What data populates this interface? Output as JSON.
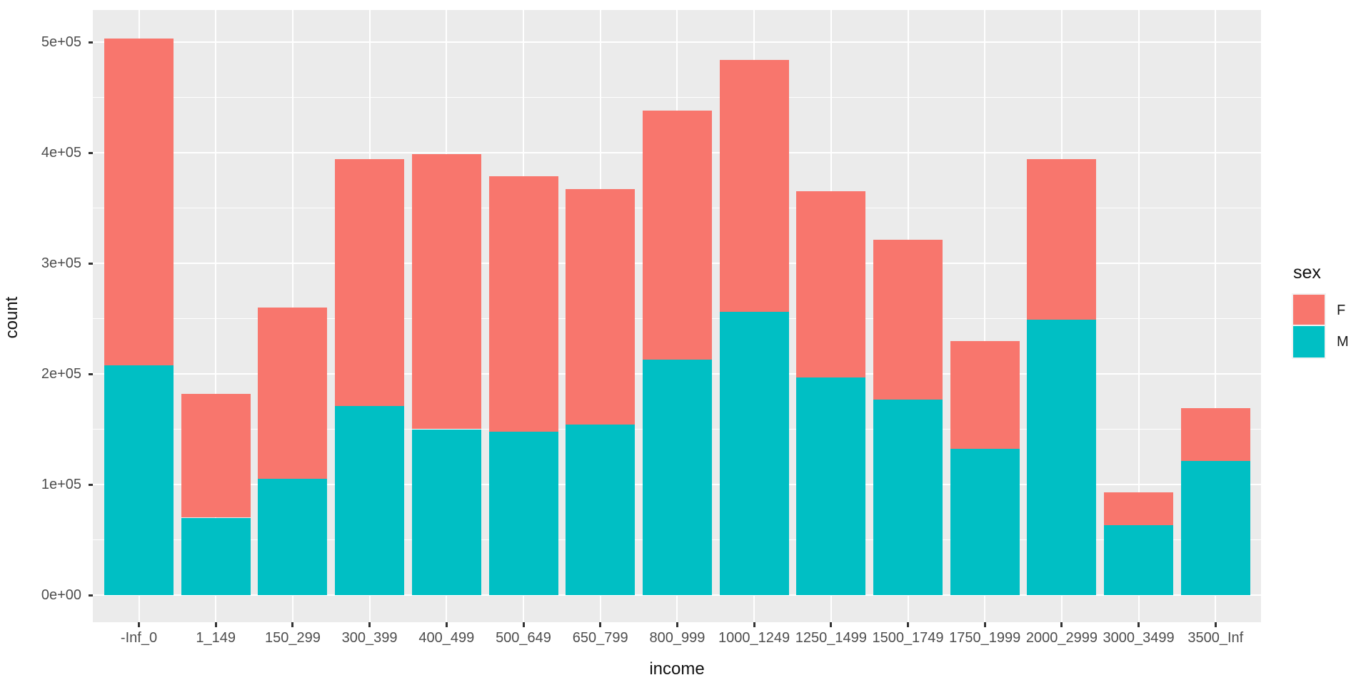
{
  "chart_data": {
    "type": "bar",
    "stacked": true,
    "title": "",
    "xlabel": "income",
    "ylabel": "count",
    "categories": [
      "-Inf_0",
      "1_149",
      "150_299",
      "300_399",
      "400_499",
      "500_649",
      "650_799",
      "800_999",
      "1000_1249",
      "1250_1499",
      "1500_1749",
      "1750_1999",
      "2000_2999",
      "3000_3499",
      "3500_Inf"
    ],
    "series": [
      {
        "name": "M",
        "color": "#00BFC4",
        "values": [
          208000,
          70000,
          105000,
          171000,
          150000,
          148000,
          154000,
          213000,
          256000,
          197000,
          177000,
          132000,
          249000,
          63000,
          121000
        ]
      },
      {
        "name": "F",
        "color": "#F8766D",
        "values": [
          295000,
          112000,
          155000,
          223000,
          249000,
          231000,
          213000,
          225000,
          228000,
          168000,
          144000,
          98000,
          145000,
          30000,
          48000
        ]
      }
    ],
    "totals": [
      503000,
      182000,
      260000,
      394000,
      399000,
      379000,
      367000,
      438000,
      484000,
      365000,
      321000,
      230000,
      394000,
      93000,
      169000
    ],
    "stack_order_bottom_to_top": [
      "M",
      "F"
    ],
    "ylim": [
      0,
      520000
    ],
    "y_ticks": [
      {
        "value": 0,
        "label": "0e+00"
      },
      {
        "value": 100000,
        "label": "1e+05"
      },
      {
        "value": 200000,
        "label": "2e+05"
      },
      {
        "value": 300000,
        "label": "3e+05"
      },
      {
        "value": 400000,
        "label": "4e+05"
      },
      {
        "value": 500000,
        "label": "5e+05"
      }
    ],
    "y_minor_ticks": [
      50000,
      150000,
      250000,
      350000,
      450000
    ],
    "grid": true,
    "legend": {
      "title": "sex",
      "position": "right",
      "entries": [
        {
          "label": "F",
          "color": "#F8766D"
        },
        {
          "label": "M",
          "color": "#00BFC4"
        }
      ]
    }
  },
  "colors": {
    "panel_bg": "#EBEBEB",
    "grid": "#FFFFFF",
    "tick_label": "#4D4D4D",
    "tick_mark": "#333333",
    "axis_title": "#111111",
    "page_bg": "#FFFFFF",
    "legend_key_bg": "#F2F2F2"
  }
}
